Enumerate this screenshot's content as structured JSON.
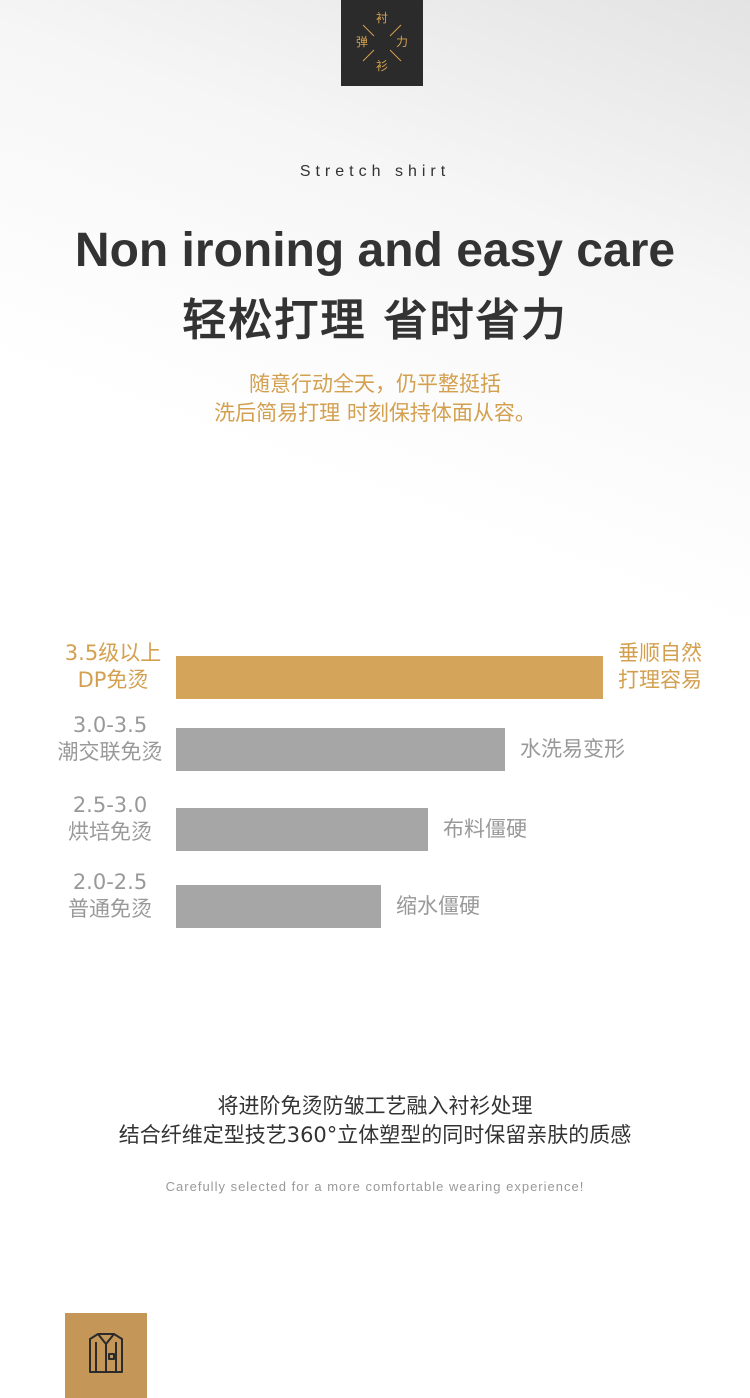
{
  "logo": {
    "chars": {
      "top": "衬",
      "left": "弹",
      "right": "力",
      "bottom": "衫"
    }
  },
  "header": {
    "subtitle_en": "Stretch shirt",
    "title_en": "Non ironing and easy care",
    "title_cn": "轻松打理 省时省力",
    "intro_lines": [
      "随意行动全天，仍平整挺括",
      "洗后简易打理 时刻保持体面从容。"
    ]
  },
  "chart_data": {
    "type": "bar",
    "orientation": "horizontal",
    "categories": [
      [
        "3.5级以上",
        "DP免烫"
      ],
      [
        "3.0-3.5",
        "潮交联免烫"
      ],
      [
        "2.5-3.0",
        "烘培免烫"
      ],
      [
        "2.0-2.5",
        "普通免烫"
      ]
    ],
    "values": [
      100,
      77,
      59,
      48
    ],
    "annotations": [
      [
        "垂顺自然",
        "打理容易"
      ],
      [
        "水洗易变形"
      ],
      [
        "布料僵硬"
      ],
      [
        "缩水僵硬"
      ]
    ],
    "colors": [
      "#d3a45a",
      "#a6a6a6",
      "#a6a6a6",
      "#a6a6a6"
    ],
    "label_colors": [
      "#d3a050",
      "#999999",
      "#999999",
      "#999999"
    ],
    "grid": false
  },
  "body": {
    "lines": [
      "将进阶免烫防皱工艺融入衬衫处理",
      "结合纤维定型技艺360°立体塑型的同时保留亲肤的质感"
    ],
    "tagline": "Carefully selected for a more comfortable wearing experience!"
  },
  "footer_icon": {
    "icon": "shirt-icon",
    "bg": "#c49758"
  }
}
